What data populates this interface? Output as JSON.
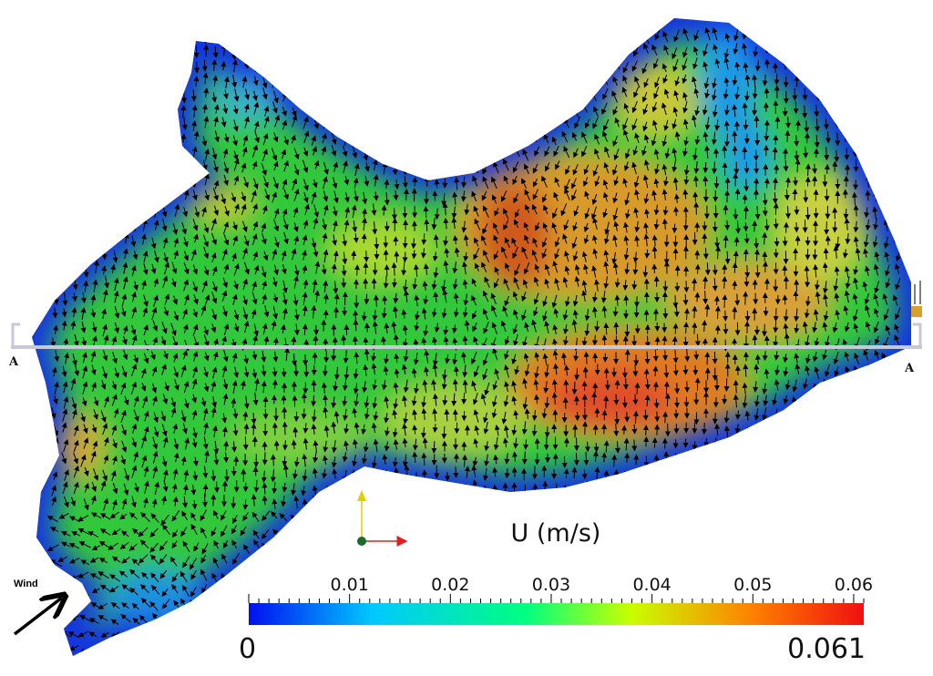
{
  "figure": {
    "variable_label": "U (m/s)",
    "wind_label": "Wind",
    "section_labels": [
      "A",
      "A"
    ]
  },
  "colorbar": {
    "min_label": "0",
    "max_label": "0.061",
    "min": 0,
    "max": 0.061,
    "ticks": [
      "0.01",
      "0.02",
      "0.03",
      "0.04",
      "0.05",
      "0.06"
    ],
    "tick_values": [
      0.01,
      0.02,
      0.03,
      0.04,
      0.05,
      0.06
    ],
    "colors": [
      "#0010f0",
      "#00c8ff",
      "#00ff80",
      "#c8ff00",
      "#ff8000",
      "#f01010"
    ]
  },
  "colors": {
    "domain_edge": "#1535e0",
    "arrow": "#000000",
    "section_line": "#c8c8d8",
    "axis_y": "#e0d000",
    "axis_x": "#e02020"
  }
}
